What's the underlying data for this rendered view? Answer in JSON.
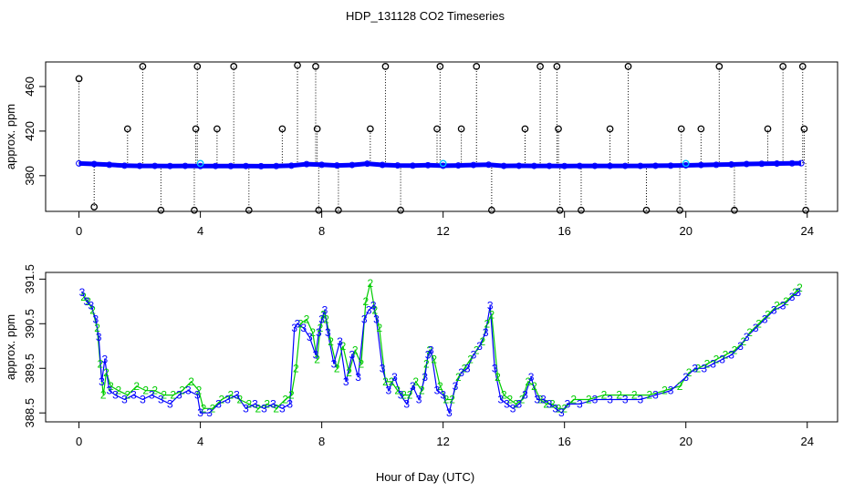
{
  "figure": {
    "title": "HDP_131128  CO2 Timeseries",
    "xlabel": "Hour of Day (UTC)"
  },
  "chart_data": [
    {
      "type": "scatter",
      "ylabel": "approx. ppm",
      "xlim": [
        -1.1,
        25.0
      ],
      "ylim": [
        348,
        482
      ],
      "xticks": [
        0,
        4,
        8,
        12,
        16,
        20,
        24
      ],
      "xtick_labels": [
        "0",
        "4",
        "8",
        "12",
        "16",
        "20",
        "24"
      ],
      "yticks": [
        380,
        420,
        460
      ],
      "ytick_labels": [
        "380",
        "420",
        "460"
      ],
      "grid": false,
      "baseline": {
        "name": "",
        "color": "#0000ff",
        "x": [
          0,
          0.5,
          1,
          1.5,
          2,
          2.5,
          3,
          3.5,
          4,
          4.5,
          5,
          5.5,
          6,
          6.5,
          7,
          7.5,
          8,
          8.5,
          9,
          9.5,
          10,
          10.5,
          11,
          11.5,
          12,
          12.5,
          13,
          13.5,
          14,
          14.5,
          15,
          15.5,
          16,
          16.5,
          17,
          17.5,
          18,
          18.5,
          19,
          19.5,
          20,
          20.5,
          21,
          21.5,
          22,
          22.5,
          23,
          23.5,
          23.8
        ],
        "y": [
          391,
          390.5,
          389.8,
          389,
          388.8,
          388.8,
          388.7,
          388.8,
          388.6,
          388.7,
          388.6,
          388.7,
          388.5,
          388.6,
          389,
          390.4,
          389.8,
          389.2,
          389.6,
          390.8,
          389.7,
          389.2,
          389,
          389.4,
          388.9,
          389.2,
          389.6,
          389.9,
          388.8,
          388.9,
          388.8,
          388.8,
          388.7,
          388.8,
          388.8,
          388.8,
          388.8,
          388.8,
          388.9,
          389,
          389.3,
          389.6,
          389.8,
          390.1,
          390.5,
          390.7,
          390.9,
          391.1,
          391.2
        ]
      },
      "spikes": {
        "name": "",
        "color": "#000000",
        "x": [
          0.0,
          0.5,
          1.6,
          2.1,
          2.7,
          3.8,
          3.85,
          3.9,
          4.55,
          5.1,
          5.6,
          6.7,
          7.2,
          7.8,
          7.85,
          7.9,
          8.55,
          9.6,
          10.1,
          10.6,
          11.8,
          11.9,
          12.6,
          13.1,
          13.6,
          14.7,
          15.2,
          15.75,
          15.8,
          15.85,
          16.55,
          17.5,
          18.1,
          18.7,
          19.8,
          19.85,
          20.5,
          21.1,
          21.6,
          22.7,
          23.2,
          23.85,
          23.9,
          23.95
        ],
        "y": [
          467,
          352,
          422,
          478,
          349,
          349,
          422,
          478,
          422,
          478,
          349,
          422,
          479,
          478,
          422,
          349,
          349,
          422,
          478,
          349,
          422,
          478,
          422,
          478,
          349,
          422,
          478,
          478,
          422,
          349,
          349,
          422,
          478,
          349,
          349,
          422,
          422,
          478,
          349,
          422,
          478,
          478,
          422,
          349
        ]
      },
      "cyan_points": {
        "name": "",
        "color": "#00bfff",
        "x": [
          4.0,
          12.0,
          20.0
        ],
        "y": [
          391,
          391,
          391
        ]
      }
    },
    {
      "type": "line",
      "ylabel": "approx. ppm",
      "xlim": [
        -1.1,
        25.0
      ],
      "ylim": [
        388.3,
        391.65
      ],
      "xticks": [
        0,
        4,
        8,
        12,
        16,
        20,
        24
      ],
      "xtick_labels": [
        "0",
        "4",
        "8",
        "12",
        "16",
        "20",
        "24"
      ],
      "yticks": [
        388.5,
        389.5,
        390.5,
        391.5
      ],
      "ytick_labels": [
        "388.5",
        "389.5",
        "390.5",
        "391.5"
      ],
      "grid": false,
      "series": [
        {
          "name": "",
          "marker": "3",
          "color": "#0000ff",
          "x": [
            0.1,
            0.25,
            0.4,
            0.55,
            0.65,
            0.75,
            0.85,
            1.0,
            1.2,
            1.5,
            1.8,
            2.1,
            2.4,
            2.7,
            3.0,
            3.3,
            3.6,
            3.9,
            4.0,
            4.3,
            4.6,
            4.9,
            5.2,
            5.5,
            5.8,
            6.1,
            6.4,
            6.7,
            6.95,
            7.1,
            7.2,
            7.4,
            7.6,
            7.8,
            7.9,
            8.0,
            8.1,
            8.2,
            8.4,
            8.6,
            8.8,
            9.0,
            9.2,
            9.4,
            9.55,
            9.7,
            9.8,
            10.0,
            10.2,
            10.4,
            10.6,
            10.8,
            11.0,
            11.2,
            11.4,
            11.5,
            11.6,
            11.8,
            12.0,
            12.2,
            12.4,
            12.6,
            12.8,
            13.0,
            13.2,
            13.4,
            13.55,
            13.7,
            13.9,
            14.1,
            14.3,
            14.5,
            14.7,
            14.9,
            15.1,
            15.3,
            15.5,
            15.7,
            15.9,
            16.1,
            16.5,
            17.0,
            17.5,
            18.0,
            18.5,
            19.0,
            19.5,
            20.0,
            20.3,
            20.6,
            20.9,
            21.2,
            21.5,
            21.8,
            22.0,
            22.3,
            22.6,
            22.9,
            23.2,
            23.5,
            23.7
          ],
          "y": [
            391.2,
            391.0,
            390.9,
            390.6,
            390.2,
            389.2,
            389.7,
            389.0,
            388.9,
            388.8,
            388.9,
            388.8,
            388.9,
            388.8,
            388.7,
            388.9,
            389.0,
            388.9,
            388.5,
            388.5,
            388.7,
            388.8,
            388.9,
            388.6,
            388.7,
            388.6,
            388.7,
            388.6,
            388.7,
            390.4,
            390.5,
            390.4,
            390.2,
            389.8,
            390.3,
            390.6,
            390.8,
            390.3,
            389.6,
            390.1,
            389.2,
            389.8,
            389.3,
            390.6,
            390.8,
            390.9,
            390.6,
            389.5,
            389.0,
            389.3,
            388.9,
            388.7,
            389.1,
            388.8,
            389.3,
            389.8,
            389.9,
            389.0,
            388.9,
            388.5,
            389.1,
            389.4,
            389.5,
            389.8,
            390.0,
            390.3,
            390.9,
            389.5,
            388.8,
            388.7,
            388.6,
            388.7,
            388.9,
            389.3,
            388.8,
            388.8,
            388.7,
            388.6,
            388.5,
            388.7,
            388.7,
            388.8,
            388.8,
            388.8,
            388.8,
            388.9,
            389.0,
            389.3,
            389.5,
            389.5,
            389.6,
            389.7,
            389.8,
            390.0,
            390.2,
            390.4,
            390.6,
            390.8,
            390.9,
            391.1,
            391.2
          ]
        },
        {
          "name": "",
          "marker": "2",
          "color": "#00cc00",
          "x": [
            0.15,
            0.3,
            0.45,
            0.6,
            0.7,
            0.8,
            0.9,
            1.05,
            1.3,
            1.6,
            1.9,
            2.2,
            2.5,
            2.8,
            3.1,
            3.4,
            3.7,
            3.95,
            4.1,
            4.4,
            4.7,
            5.0,
            5.3,
            5.6,
            5.9,
            6.2,
            6.5,
            6.8,
            7.0,
            7.15,
            7.3,
            7.5,
            7.7,
            7.85,
            7.95,
            8.05,
            8.15,
            8.3,
            8.5,
            8.7,
            8.9,
            9.1,
            9.3,
            9.45,
            9.6,
            9.75,
            9.9,
            10.1,
            10.3,
            10.5,
            10.7,
            10.9,
            11.1,
            11.3,
            11.45,
            11.55,
            11.7,
            11.9,
            12.1,
            12.3,
            12.5,
            12.7,
            12.9,
            13.1,
            13.3,
            13.45,
            13.6,
            13.8,
            14.0,
            14.2,
            14.4,
            14.6,
            14.8,
            15.0,
            15.2,
            15.4,
            15.6,
            15.8,
            16.0,
            16.3,
            16.8,
            17.3,
            17.8,
            18.3,
            18.8,
            19.3,
            19.8,
            20.1,
            20.4,
            20.7,
            21.0,
            21.3,
            21.6,
            21.9,
            22.1,
            22.4,
            22.7,
            23.0,
            23.3,
            23.6,
            23.75
          ],
          "y": [
            391.1,
            391.0,
            390.8,
            390.4,
            389.6,
            388.9,
            389.4,
            389.1,
            389.0,
            388.9,
            389.1,
            389.0,
            389.0,
            388.9,
            388.9,
            389.0,
            389.2,
            389.0,
            388.6,
            388.6,
            388.8,
            388.9,
            388.8,
            388.7,
            388.6,
            388.7,
            388.6,
            388.8,
            388.9,
            389.5,
            390.5,
            390.6,
            390.3,
            389.7,
            390.4,
            390.7,
            390.6,
            390.1,
            389.5,
            390.0,
            389.4,
            389.9,
            389.6,
            391.0,
            391.4,
            390.8,
            390.4,
            389.2,
            389.2,
            389.0,
            388.9,
            388.9,
            389.2,
            389.0,
            389.6,
            389.9,
            389.7,
            389.1,
            388.8,
            388.8,
            389.3,
            389.5,
            389.7,
            389.9,
            390.1,
            390.5,
            390.7,
            389.3,
            388.9,
            388.8,
            388.7,
            388.8,
            389.2,
            389.1,
            388.8,
            388.7,
            388.7,
            388.6,
            388.6,
            388.8,
            388.8,
            388.9,
            388.9,
            388.9,
            388.9,
            389.0,
            389.1,
            389.4,
            389.5,
            389.6,
            389.7,
            389.8,
            389.9,
            390.1,
            390.3,
            390.5,
            390.7,
            390.9,
            391.0,
            391.2,
            391.3
          ]
        }
      ]
    }
  ]
}
